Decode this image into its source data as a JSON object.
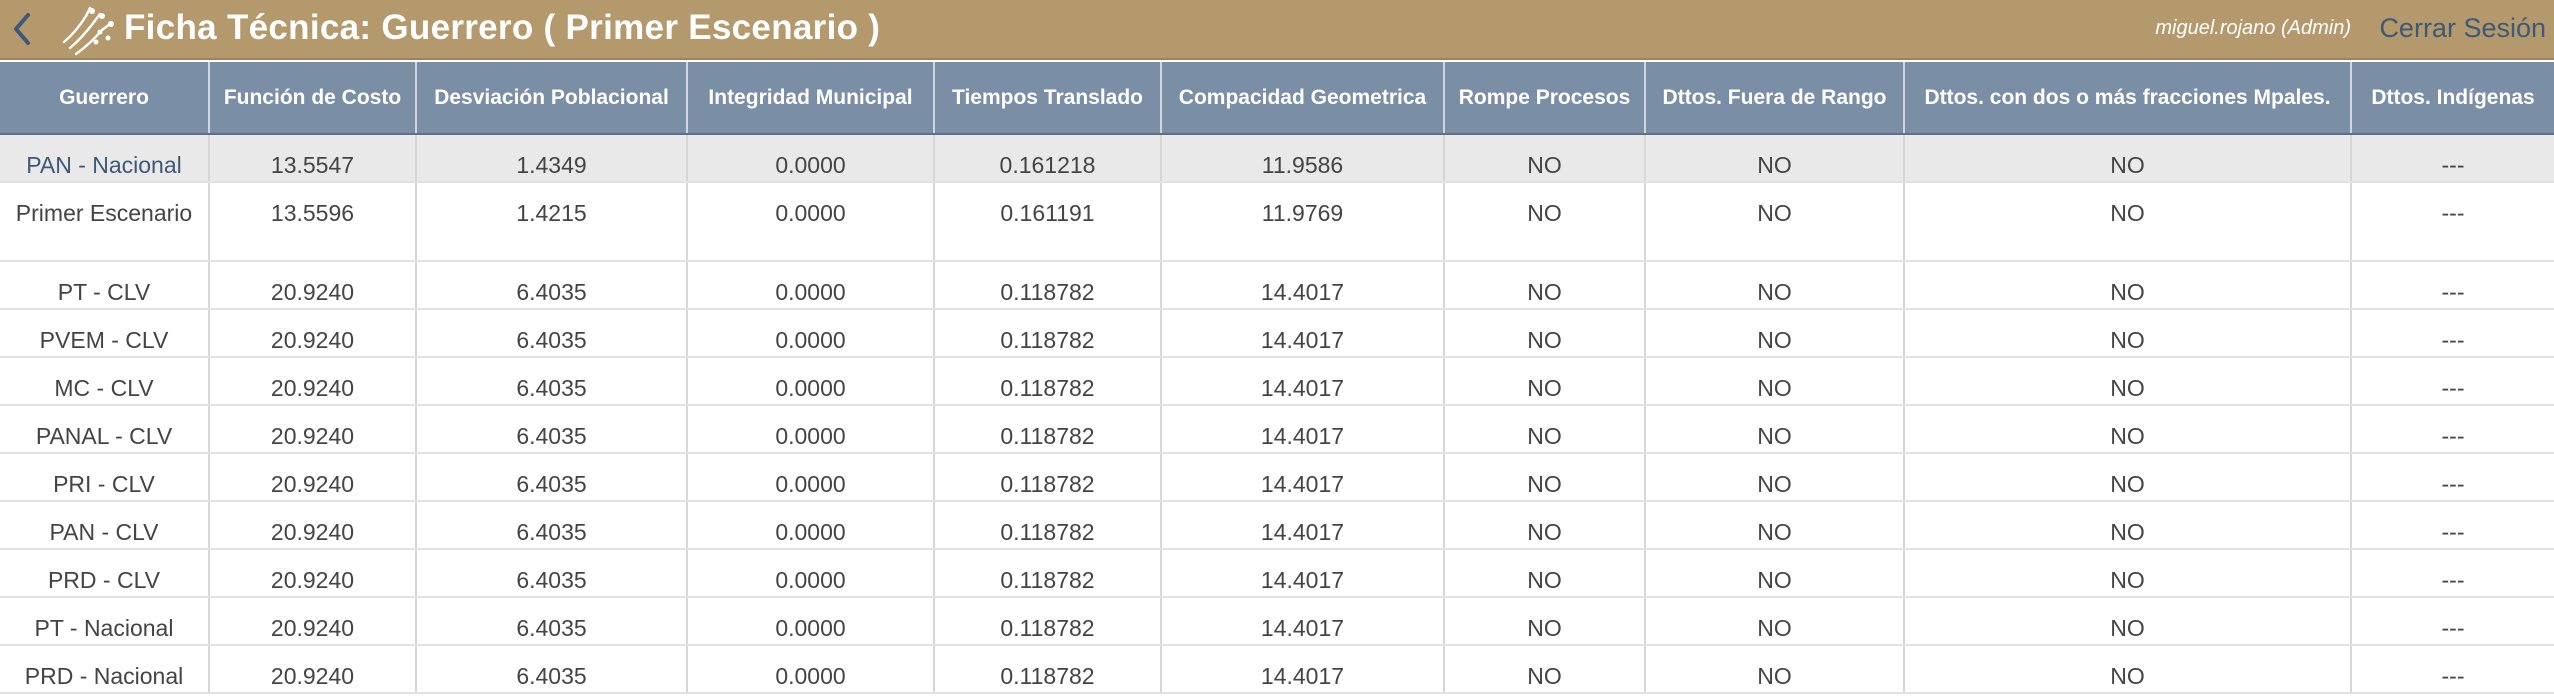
{
  "header": {
    "title": "Ficha Técnica: Guerrero ( Primer Escenario )",
    "user": "miguel.rojano (Admin)",
    "logout_label": "Cerrar Sesión"
  },
  "colors": {
    "topbar": "#b3996c",
    "table_header": "#7a8ea6",
    "highlight_row": "#e9e9e9",
    "link": "#3d5878"
  },
  "table": {
    "columns": [
      "Guerrero",
      "Función de Costo",
      "Desviación Poblacional",
      "Integridad Municipal",
      "Tiempos Translado",
      "Compacidad Geometrica",
      "Rompe Procesos",
      "Dttos. Fuera de Rango",
      "Dttos. con dos o más fracciones Mpales.",
      "Dttos. Indígenas"
    ],
    "rows": [
      [
        "PAN - Nacional",
        "13.5547",
        "1.4349",
        "0.0000",
        "0.161218",
        "11.9586",
        "NO",
        "NO",
        "NO",
        "---"
      ],
      [
        "Primer Escenario",
        "13.5596",
        "1.4215",
        "0.0000",
        "0.161191",
        "11.9769",
        "NO",
        "NO",
        "NO",
        "---"
      ],
      [
        "PT - CLV",
        "20.9240",
        "6.4035",
        "0.0000",
        "0.118782",
        "14.4017",
        "NO",
        "NO",
        "NO",
        "---"
      ],
      [
        "PVEM - CLV",
        "20.9240",
        "6.4035",
        "0.0000",
        "0.118782",
        "14.4017",
        "NO",
        "NO",
        "NO",
        "---"
      ],
      [
        "MC - CLV",
        "20.9240",
        "6.4035",
        "0.0000",
        "0.118782",
        "14.4017",
        "NO",
        "NO",
        "NO",
        "---"
      ],
      [
        "PANAL - CLV",
        "20.9240",
        "6.4035",
        "0.0000",
        "0.118782",
        "14.4017",
        "NO",
        "NO",
        "NO",
        "---"
      ],
      [
        "PRI - CLV",
        "20.9240",
        "6.4035",
        "0.0000",
        "0.118782",
        "14.4017",
        "NO",
        "NO",
        "NO",
        "---"
      ],
      [
        "PAN - CLV",
        "20.9240",
        "6.4035",
        "0.0000",
        "0.118782",
        "14.4017",
        "NO",
        "NO",
        "NO",
        "---"
      ],
      [
        "PRD - CLV",
        "20.9240",
        "6.4035",
        "0.0000",
        "0.118782",
        "14.4017",
        "NO",
        "NO",
        "NO",
        "---"
      ],
      [
        "PT - Nacional",
        "20.9240",
        "6.4035",
        "0.0000",
        "0.118782",
        "14.4017",
        "NO",
        "NO",
        "NO",
        "---"
      ],
      [
        "PRD - Nacional",
        "20.9240",
        "6.4035",
        "0.0000",
        "0.118782",
        "14.4017",
        "NO",
        "NO",
        "NO",
        "---"
      ]
    ]
  }
}
